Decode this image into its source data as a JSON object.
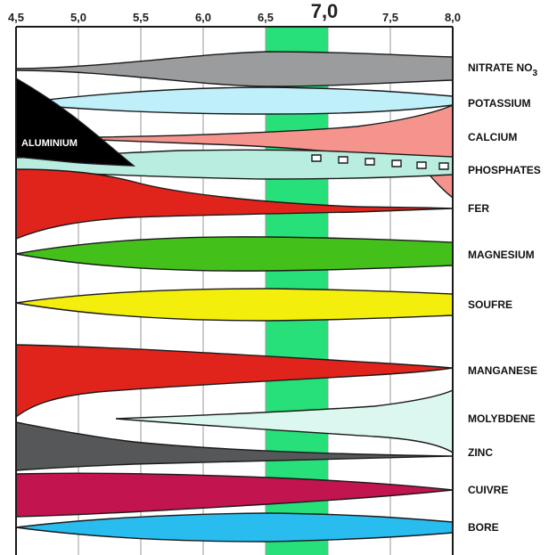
{
  "chart_data": {
    "type": "diagram",
    "x_axis": {
      "min": 4.5,
      "max": 8.0,
      "ticks": [
        "4,5",
        "5,0",
        "5,5",
        "6,0",
        "6,5",
        "7,0",
        "7,5",
        "8,0"
      ],
      "tick_values": [
        4.5,
        5.0,
        5.5,
        6.0,
        6.5,
        7.0,
        7.5,
        8.0
      ],
      "highlight_range": [
        6.5,
        7.0
      ],
      "highlight_color": "#27e07a"
    },
    "nutrients": [
      {
        "label": "NITRATE NO",
        "sub": "3",
        "color": "#9a9c9e"
      },
      {
        "label": "POTASSIUM",
        "color": "#bfeff9"
      },
      {
        "label": "CALCIUM",
        "color": "#f4948c"
      },
      {
        "label": "PHOSPHATES",
        "color": "#b8ede0"
      },
      {
        "label": "FER",
        "color": "#e0241b"
      },
      {
        "label": "MAGNESIUM",
        "color": "#44c01a"
      },
      {
        "label": "SOUFRE",
        "color": "#f4ee0c"
      },
      {
        "label": "MANGANESE",
        "color": "#e0241b"
      },
      {
        "label": "MOLYBDENE",
        "color": "#dcf6f0"
      },
      {
        "label": "ZINC",
        "color": "#555759"
      },
      {
        "label": "CUIVRE",
        "color": "#c2144e"
      },
      {
        "label": "BORE",
        "color": "#28bcef"
      }
    ],
    "aluminium": {
      "label": "ALUMINIUM",
      "color": "#000000"
    }
  }
}
